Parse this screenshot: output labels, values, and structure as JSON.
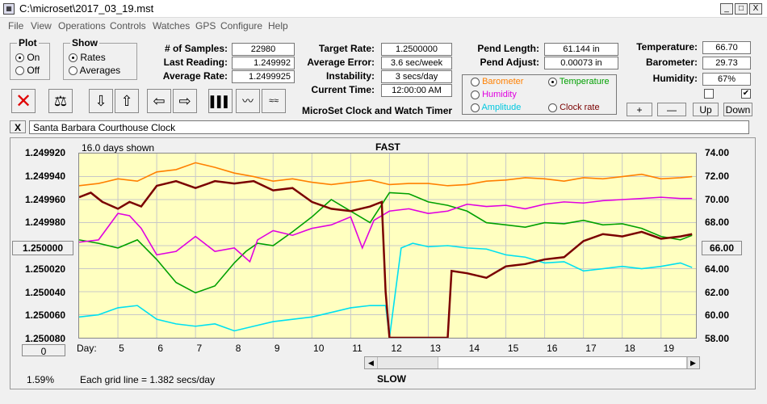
{
  "window": {
    "title": "C:\\microset\\2017_03_19.mst",
    "controls": [
      "_",
      "□",
      "X"
    ]
  },
  "menu": [
    "File",
    "View",
    "Operations",
    "Controls",
    "Watches",
    "GPS",
    "Configure",
    "Help"
  ],
  "plot_group": {
    "title": "Plot",
    "options": [
      "On",
      "Off"
    ],
    "selected": "On"
  },
  "show_group": {
    "title": "Show",
    "options": [
      "Rates",
      "Averages"
    ],
    "selected": "Rates"
  },
  "stats": [
    {
      "label": "# of Samples:",
      "value": "22980"
    },
    {
      "label": "Last Reading:",
      "value": "1.249992"
    },
    {
      "label": "Average Rate:",
      "value": "1.2499925"
    }
  ],
  "rates": [
    {
      "label": "Target Rate:",
      "value": "1.2500000"
    },
    {
      "label": "Average Error:",
      "value": "3.6 sec/week"
    },
    {
      "label": "Instability:",
      "value": "3 secs/day"
    },
    {
      "label": "Current Time:",
      "value": "12:00:00 AM"
    }
  ],
  "app_caption": "MicroSet Clock and Watch Timer",
  "pend": [
    {
      "label": "Pend Length:",
      "value": "61.144 in"
    },
    {
      "label": "Pend Adjust:",
      "value": "0.00073 in"
    }
  ],
  "env": [
    {
      "label": "Temperature:",
      "value": "66.70"
    },
    {
      "label": "Barometer:",
      "value": "29.73"
    },
    {
      "label": "Humidity:",
      "value": "67%"
    }
  ],
  "sensor_options": {
    "barometer": "Barometer",
    "temperature": "Temperature",
    "humidity": "Humidity",
    "amplitude": "Amplitude",
    "clock_rate": "Clock rate",
    "selected": "Temperature"
  },
  "adjust_buttons": {
    "plus": "+",
    "minus": "—",
    "up": "Up",
    "down": "Down"
  },
  "checkboxes": [
    {
      "checked": false
    },
    {
      "checked": true
    }
  ],
  "clock_name": "Santa Barbara Courthouse Clock",
  "close_label": "X",
  "toolbar_icons": [
    "stop-icon",
    "balance-scale-icon",
    "arrow-down-icon",
    "arrow-up-icon",
    "arrow-left-icon",
    "arrow-right-icon",
    "histogram-icon",
    "wave-icon",
    "multi-wave-icon"
  ],
  "chart": {
    "days_shown": "16.0 days shown",
    "top_label": "FAST",
    "bottom_label": "SLOW",
    "grid_note": "Each grid line = 1.382 secs/day",
    "percent": "1.59%",
    "center_button": "1.250000",
    "right_button": "66.00",
    "zero_button": "0",
    "day_label": "Day:"
  },
  "colors": {
    "barometer": "#ff8000",
    "temperature": "#00a000",
    "humidity": "#e000e0",
    "amplitude": "#00e0f0",
    "rate": "#7a0000",
    "plot_bg": "#ffffc0"
  },
  "chart_data": {
    "type": "line",
    "x_label": "Day:",
    "x_ticks": [
      5,
      6,
      7,
      8,
      9,
      10,
      11,
      12,
      13,
      14,
      15,
      16,
      17,
      18,
      19
    ],
    "x_range": [
      4,
      19.9
    ],
    "y_left_ticks": [
      "1.249920",
      "1.249940",
      "1.249960",
      "1.249980",
      "1.250000",
      "1.250020",
      "1.250040",
      "1.250060",
      "1.250080"
    ],
    "y_left_range": [
      1.24992,
      1.25008
    ],
    "y_left_inverted": true,
    "y_right_ticks": [
      "74.00",
      "72.00",
      "70.00",
      "68.00",
      "66.00",
      "64.00",
      "62.00",
      "60.00",
      "58.00"
    ],
    "y_right_range": [
      58,
      74
    ],
    "grid": true,
    "series": [
      {
        "name": "Barometer",
        "axis": "right",
        "x": [
          4,
          4.5,
          5,
          5.5,
          6,
          6.5,
          7,
          7.5,
          8,
          8.5,
          9,
          9.5,
          10,
          10.5,
          11,
          11.5,
          12,
          12.5,
          13,
          13.5,
          14,
          14.5,
          15,
          15.5,
          16,
          16.5,
          17,
          17.5,
          18,
          18.5,
          19,
          19.5,
          19.8
        ],
        "y": [
          71.2,
          71.4,
          71.8,
          71.6,
          72.4,
          72.6,
          73.2,
          72.8,
          72.3,
          72.0,
          71.6,
          71.8,
          71.5,
          71.3,
          71.5,
          71.7,
          71.3,
          71.4,
          71.4,
          71.2,
          71.3,
          71.6,
          71.7,
          71.9,
          71.8,
          71.6,
          71.9,
          71.8,
          72.0,
          72.2,
          71.8,
          71.9,
          72.0
        ]
      },
      {
        "name": "Temperature",
        "axis": "right",
        "x": [
          4,
          4.5,
          5,
          5.5,
          6,
          6.5,
          7,
          7.5,
          8,
          8.3,
          8.6,
          9,
          9.5,
          10,
          10.5,
          11,
          11.5,
          12,
          12.5,
          13,
          13.5,
          14,
          14.5,
          15,
          15.5,
          16,
          16.5,
          17,
          17.5,
          18,
          18.5,
          19,
          19.5,
          19.8
        ],
        "y": [
          66.5,
          66.2,
          65.8,
          66.5,
          64.8,
          62.8,
          61.9,
          62.5,
          64.5,
          65.5,
          66.2,
          66.0,
          67.2,
          68.5,
          70.0,
          69.0,
          68.0,
          70.6,
          70.5,
          69.8,
          69.5,
          69.0,
          68.0,
          67.8,
          67.6,
          68.0,
          67.9,
          68.2,
          67.8,
          67.9,
          67.5,
          66.8,
          66.5,
          66.9
        ]
      },
      {
        "name": "Humidity",
        "axis": "right",
        "x": [
          4,
          4.5,
          5,
          5.3,
          5.6,
          6,
          6.5,
          7,
          7.5,
          8,
          8.4,
          8.6,
          9,
          9.5,
          10,
          10.5,
          11,
          11.3,
          11.6,
          12,
          12.5,
          13,
          13.5,
          14,
          14.5,
          15,
          15.5,
          16,
          16.5,
          17,
          17.5,
          18,
          18.5,
          19,
          19.5,
          19.8
        ],
        "y": [
          66.3,
          66.5,
          68.8,
          68.6,
          67.5,
          65.2,
          65.5,
          66.8,
          65.5,
          65.8,
          64.6,
          66.5,
          67.3,
          66.9,
          67.5,
          67.8,
          68.5,
          65.8,
          68.2,
          69.0,
          69.2,
          68.8,
          69.0,
          69.6,
          69.4,
          69.5,
          69.2,
          69.6,
          69.8,
          69.7,
          69.9,
          70.0,
          70.1,
          70.2,
          70.1,
          70.1
        ]
      },
      {
        "name": "Amplitude",
        "axis": "right",
        "x": [
          4,
          4.5,
          5,
          5.5,
          6,
          6.5,
          7,
          7.5,
          8,
          8.5,
          9,
          9.5,
          10,
          10.5,
          11,
          11.5,
          11.9,
          12,
          12.3,
          12.6,
          13,
          13.5,
          14,
          14.5,
          15,
          15.5,
          16,
          16.5,
          17,
          17.5,
          18,
          18.5,
          19,
          19.5,
          19.8
        ],
        "y": [
          59.8,
          60.0,
          60.6,
          60.8,
          59.6,
          59.2,
          59.0,
          59.2,
          58.6,
          59.0,
          59.4,
          59.6,
          59.8,
          60.2,
          60.6,
          60.8,
          60.8,
          58.0,
          65.8,
          66.2,
          65.9,
          66.0,
          65.8,
          65.7,
          65.2,
          65.0,
          64.5,
          64.6,
          63.8,
          64.0,
          64.2,
          64.0,
          64.2,
          64.5,
          64.1
        ]
      },
      {
        "name": "Rate",
        "axis": "left",
        "x": [
          4,
          4.3,
          4.6,
          5,
          5.3,
          5.6,
          6,
          6.5,
          7,
          7.5,
          8,
          8.5,
          9,
          9.5,
          10,
          10.5,
          11,
          11.5,
          11.8,
          11.9,
          12,
          13.5,
          13.6,
          14,
          14.5,
          15,
          15.5,
          16,
          16.5,
          17,
          17.5,
          18,
          18.5,
          19,
          19.5,
          19.8
        ],
        "y": [
          1.249958,
          1.249954,
          1.249962,
          1.249968,
          1.249962,
          1.249966,
          1.249948,
          1.249944,
          1.24995,
          1.249944,
          1.249946,
          1.249944,
          1.249952,
          1.24995,
          1.249962,
          1.249968,
          1.24997,
          1.249966,
          1.249962,
          1.25004,
          1.25008,
          1.25008,
          1.250022,
          1.250024,
          1.250028,
          1.250018,
          1.250016,
          1.250012,
          1.25001,
          1.249996,
          1.24999,
          1.249992,
          1.249988,
          1.249994,
          1.249992,
          1.24999
        ]
      }
    ]
  }
}
